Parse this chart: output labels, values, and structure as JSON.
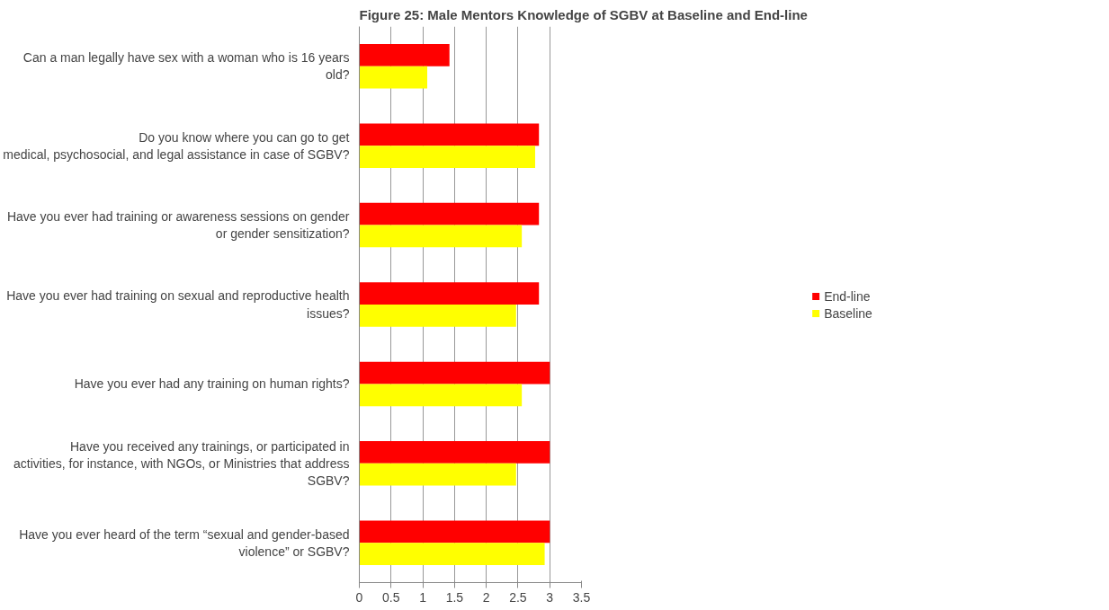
{
  "chart_data": {
    "type": "bar",
    "orientation": "horizontal",
    "title": "Figure 25: Male Mentors Knowledge of SGBV at Baseline and End-line",
    "categories": [
      "Can a man legally have sex with a woman who is 16 years\nold?",
      "Do you know where you can go to get\nmedical, psychosocial, and legal assistance in case of SGBV?",
      "Have you ever had training or awareness sessions on gender\nor gender sensitization?",
      "Have you ever had training on sexual and reproductive health\nissues?",
      "Have you ever had any training on human rights?",
      "Have you received any trainings, or participated in\nactivities, for instance, with NGOs, or Ministries that address\nSGBV?",
      "Have you ever heard of the term “sexual and gender-based\nviolence” or SGBV?"
    ],
    "series": [
      {
        "name": "End-line",
        "color": "#ff0000",
        "values": [
          1.42,
          2.83,
          2.83,
          2.83,
          3,
          3,
          3
        ]
      },
      {
        "name": "Baseline",
        "color": "#ffff00",
        "values": [
          1.07,
          2.77,
          2.56,
          2.47,
          2.56,
          2.47,
          2.92
        ]
      }
    ],
    "xlim": [
      0,
      3.5
    ],
    "xticks": [
      0,
      0.5,
      1,
      1.5,
      2,
      2.5,
      3,
      3.5
    ],
    "grid": "x",
    "legend": "right"
  }
}
